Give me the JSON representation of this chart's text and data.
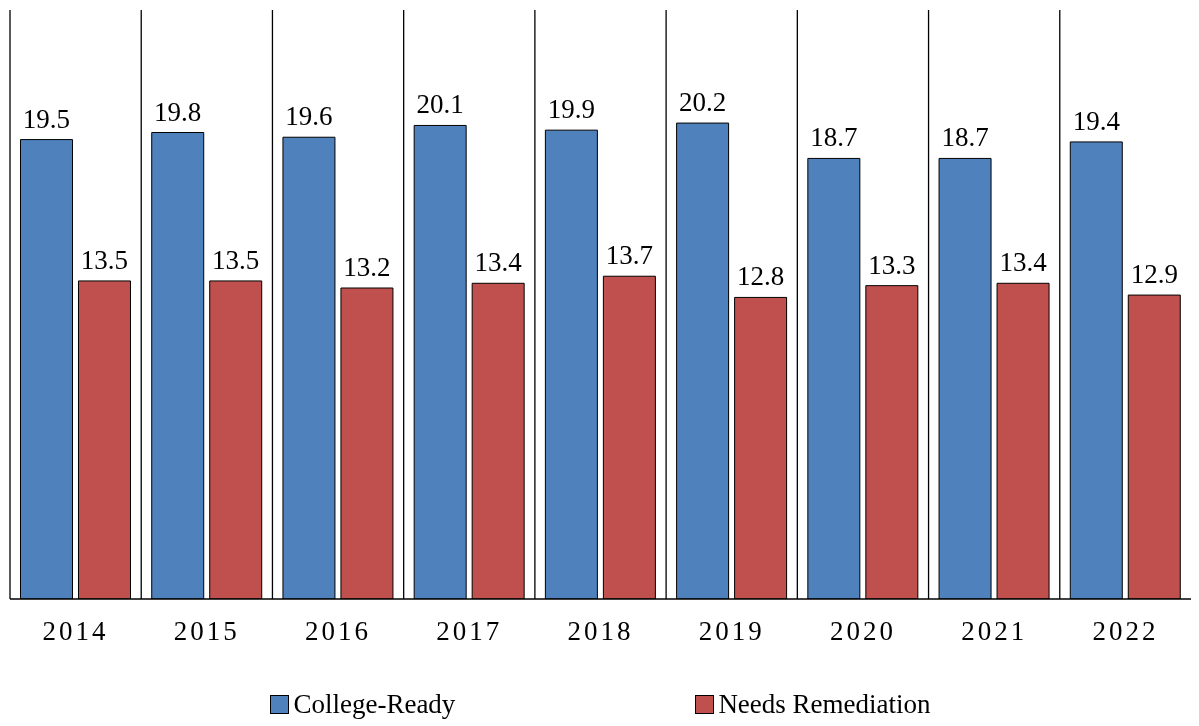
{
  "chart_data": {
    "type": "bar",
    "categories": [
      "2014",
      "2015",
      "2016",
      "2017",
      "2018",
      "2019",
      "2020",
      "2021",
      "2022"
    ],
    "series": [
      {
        "name": "College-Ready",
        "color": "#4f81bd",
        "values": [
          19.5,
          19.8,
          19.6,
          20.1,
          19.9,
          20.2,
          18.7,
          18.7,
          19.4
        ]
      },
      {
        "name": "Needs Remediation",
        "color": "#c0504d",
        "values": [
          13.5,
          13.5,
          13.2,
          13.4,
          13.7,
          12.8,
          13.3,
          13.4,
          12.9
        ]
      }
    ],
    "ylim": [
      0,
      25
    ],
    "tick_labels": "x",
    "data_labels": true,
    "grid": "x",
    "legend": "bottom"
  }
}
